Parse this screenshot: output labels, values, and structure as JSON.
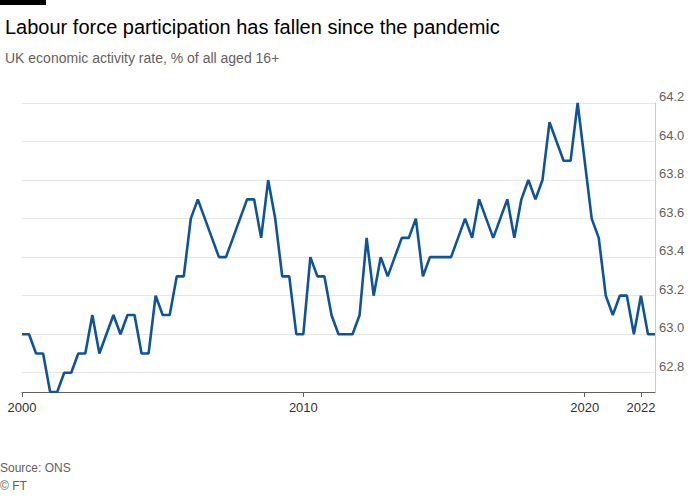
{
  "chart_data": {
    "type": "line",
    "title": "Labour force participation has fallen since the pandemic",
    "subtitle": "UK economic activity rate, % of all aged 16+",
    "source": "Source: ONS",
    "credit": "© FT",
    "x": [
      2000,
      2000.25,
      2000.5,
      2000.75,
      2001,
      2001.25,
      2001.5,
      2001.75,
      2002,
      2002.25,
      2002.5,
      2002.75,
      2003,
      2003.25,
      2003.5,
      2003.75,
      2004,
      2004.25,
      2004.5,
      2004.75,
      2005,
      2005.25,
      2005.5,
      2005.75,
      2006,
      2006.25,
      2006.5,
      2006.75,
      2007,
      2007.25,
      2007.5,
      2007.75,
      2008,
      2008.25,
      2008.5,
      2008.75,
      2009,
      2009.25,
      2009.5,
      2009.75,
      2010,
      2010.25,
      2010.5,
      2010.75,
      2011,
      2011.25,
      2011.5,
      2011.75,
      2012,
      2012.25,
      2012.5,
      2012.75,
      2013,
      2013.25,
      2013.5,
      2013.75,
      2014,
      2014.25,
      2014.5,
      2014.75,
      2015,
      2015.25,
      2015.5,
      2015.75,
      2016,
      2016.25,
      2016.5,
      2016.75,
      2017,
      2017.25,
      2017.5,
      2017.75,
      2018,
      2018.25,
      2018.5,
      2018.75,
      2019,
      2019.25,
      2019.5,
      2019.75,
      2020,
      2020.25,
      2020.5,
      2020.75,
      2021,
      2021.25,
      2021.5,
      2021.75,
      2022,
      2022.25,
      2022.5
    ],
    "values": [
      63.0,
      63.0,
      62.9,
      62.9,
      62.7,
      62.7,
      62.8,
      62.8,
      62.9,
      62.9,
      63.1,
      62.9,
      63.0,
      63.1,
      63.0,
      63.1,
      63.1,
      62.9,
      62.9,
      63.2,
      63.1,
      63.1,
      63.3,
      63.3,
      63.6,
      63.7,
      63.6,
      63.5,
      63.4,
      63.4,
      63.5,
      63.6,
      63.7,
      63.7,
      63.5,
      63.8,
      63.6,
      63.3,
      63.3,
      63.0,
      63.0,
      63.4,
      63.3,
      63.3,
      63.1,
      63.0,
      63.0,
      63.0,
      63.1,
      63.5,
      63.2,
      63.4,
      63.3,
      63.4,
      63.5,
      63.5,
      63.6,
      63.3,
      63.4,
      63.4,
      63.4,
      63.4,
      63.5,
      63.6,
      63.5,
      63.7,
      63.6,
      63.5,
      63.6,
      63.7,
      63.5,
      63.7,
      63.8,
      63.7,
      63.8,
      64.1,
      64.0,
      63.9,
      63.9,
      64.2,
      63.9,
      63.6,
      63.5,
      63.2,
      63.1,
      63.2,
      63.2,
      63.0,
      63.2,
      63.0,
      63.0
    ],
    "color": "#0f5499",
    "xlim": [
      2000,
      2022.5
    ],
    "xticks": [
      2000,
      2010,
      2020,
      2022
    ],
    "ylim": [
      62.7,
      64.2
    ],
    "yticks": [
      62.8,
      {
        "value": 63,
        "label": "63.0"
      },
      63.2,
      63.4,
      63.6,
      63.8,
      {
        "value": 64,
        "label": "64.0"
      },
      64.2
    ],
    "grid": true
  }
}
